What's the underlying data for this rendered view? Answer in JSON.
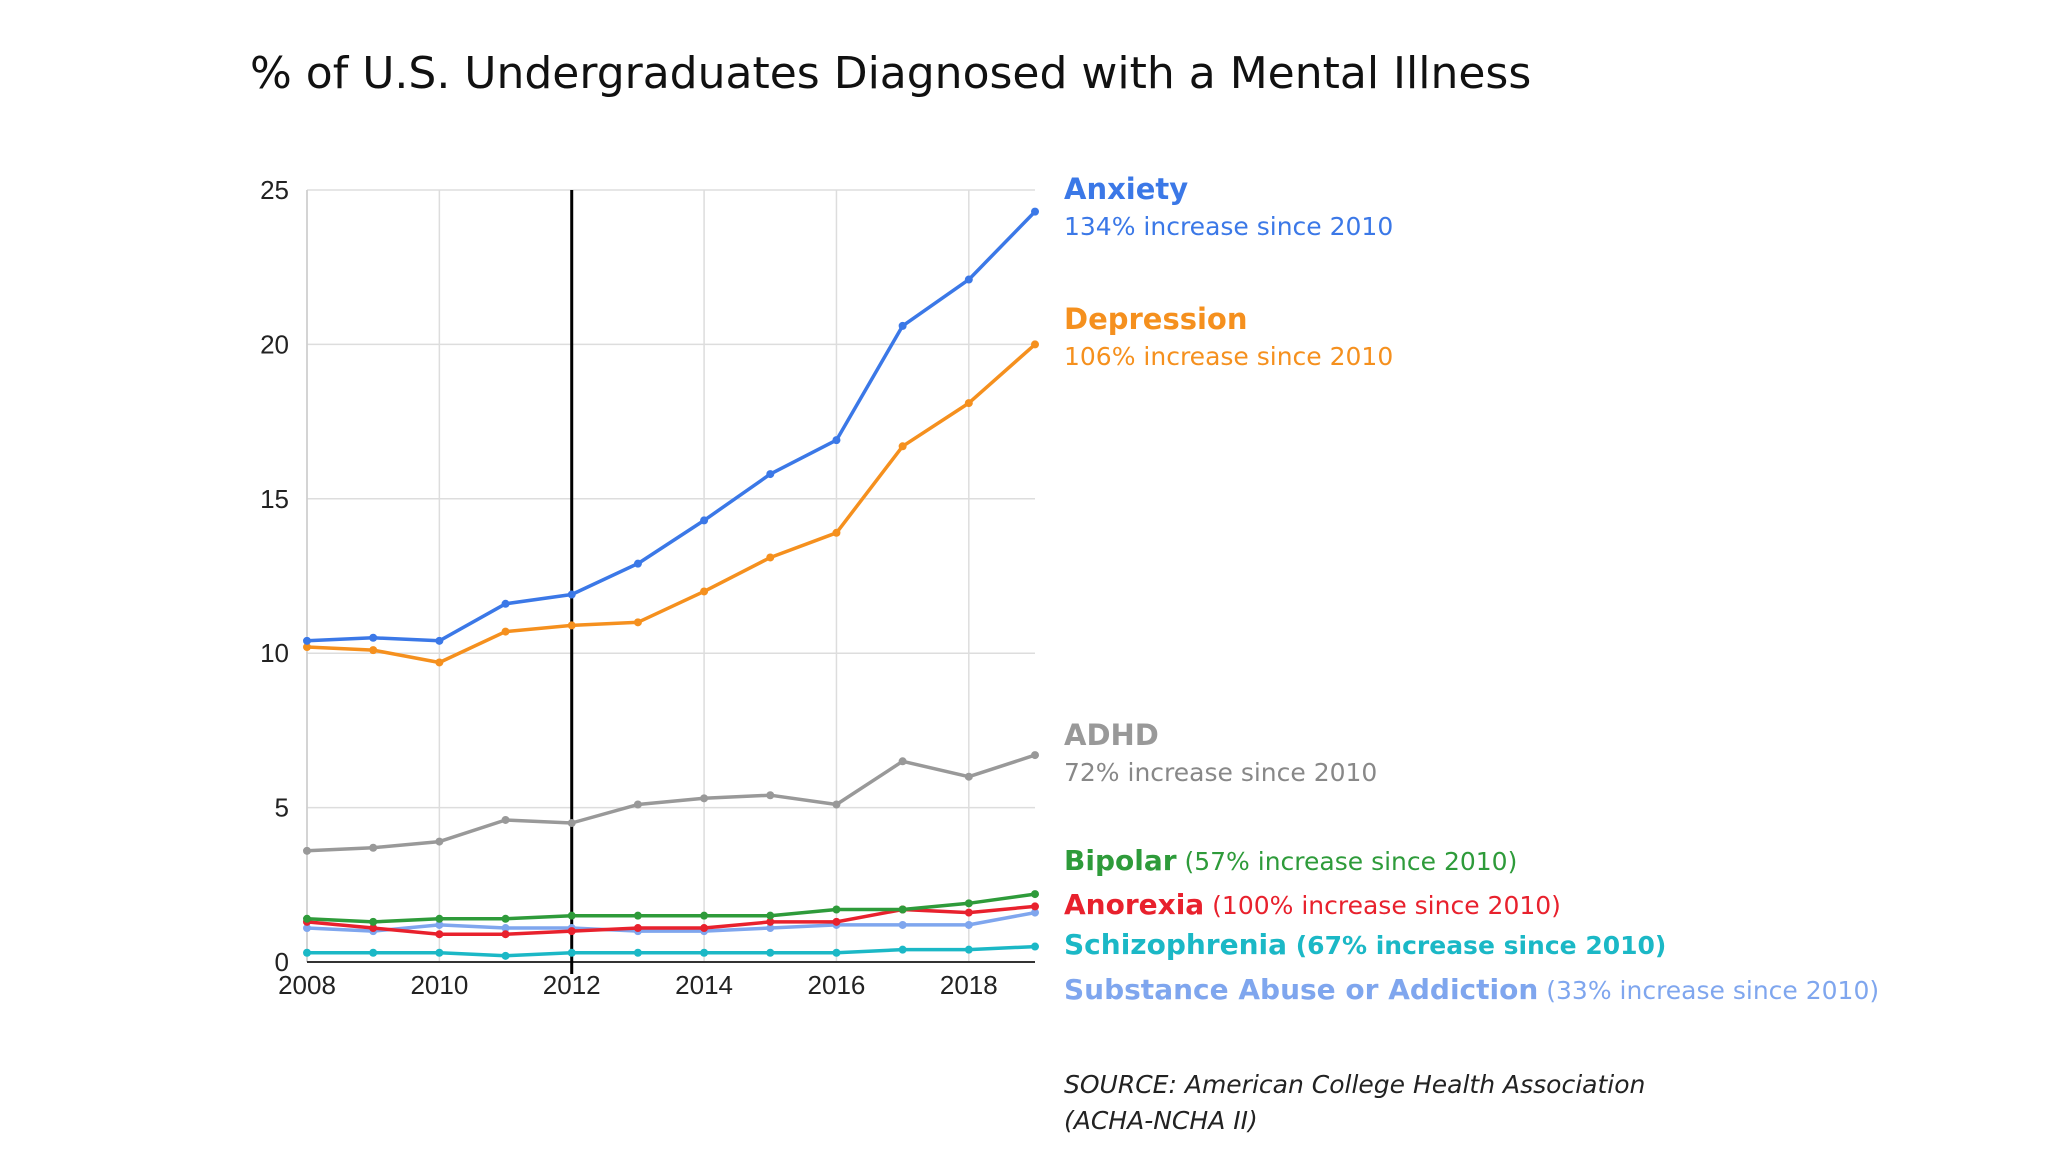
{
  "title": "% of U.S. Undergraduates Diagnosed with a Mental Illness",
  "source": {
    "line1": "SOURCE: American College Health Association",
    "line2": "(ACHA-NCHA II)"
  },
  "chart_data": {
    "type": "line",
    "title": "% of U.S. Undergraduates Diagnosed with a Mental Illness",
    "xlabel": "",
    "ylabel": "",
    "xlim": [
      2008,
      2019
    ],
    "ylim": [
      0,
      25
    ],
    "x_ticks": [
      "2008",
      "2010",
      "2012",
      "2014",
      "2016",
      "2018"
    ],
    "y_ticks": [
      "0",
      "5",
      "10",
      "15",
      "20",
      "25"
    ],
    "grid": true,
    "reference_line_x": 2012,
    "x": [
      2008,
      2009,
      2010,
      2011,
      2012,
      2013,
      2014,
      2015,
      2016,
      2017,
      2018,
      2019
    ],
    "series": [
      {
        "name": "Anxiety",
        "color": "#3b78e7",
        "label_line": "134% increase since 2010",
        "values": [
          10.4,
          10.5,
          10.4,
          11.6,
          11.9,
          12.9,
          14.3,
          15.8,
          16.9,
          20.6,
          22.1,
          24.3
        ]
      },
      {
        "name": "Depression",
        "color": "#f5901e",
        "label_line": "106% increase since 2010",
        "values": [
          10.2,
          10.1,
          9.7,
          10.7,
          10.9,
          11.0,
          12.0,
          13.1,
          13.9,
          16.7,
          18.1,
          20.0
        ]
      },
      {
        "name": "ADHD",
        "color": "#999999",
        "label_line": "72% increase since 2010",
        "values": [
          3.6,
          3.7,
          3.9,
          4.6,
          4.5,
          5.1,
          5.3,
          5.4,
          5.1,
          6.5,
          6.0,
          6.7
        ]
      },
      {
        "name": "Bipolar",
        "color": "#2e9b3a",
        "label_note": "(57% increase since 2010)",
        "values": [
          1.4,
          1.3,
          1.4,
          1.4,
          1.5,
          1.5,
          1.5,
          1.5,
          1.7,
          1.7,
          1.9,
          2.2
        ]
      },
      {
        "name": "Anorexia",
        "color": "#e8212d",
        "label_note": "(100% increase since 2010)",
        "values": [
          1.3,
          1.1,
          0.9,
          0.9,
          1.0,
          1.1,
          1.1,
          1.3,
          1.3,
          1.7,
          1.6,
          1.8
        ]
      },
      {
        "name": "Schizophrenia",
        "color": "#1bb8c6",
        "label_note": "(67% increase since 2010)",
        "values": [
          0.3,
          0.3,
          0.3,
          0.2,
          0.3,
          0.3,
          0.3,
          0.3,
          0.3,
          0.4,
          0.4,
          0.5
        ]
      },
      {
        "name": "Substance Abuse or Addiction",
        "color": "#7fa6ee",
        "label_note": "(33% increase since 2010)",
        "values": [
          1.1,
          1.0,
          1.2,
          1.1,
          1.1,
          1.0,
          1.0,
          1.1,
          1.2,
          1.2,
          1.2,
          1.6
        ]
      }
    ]
  }
}
